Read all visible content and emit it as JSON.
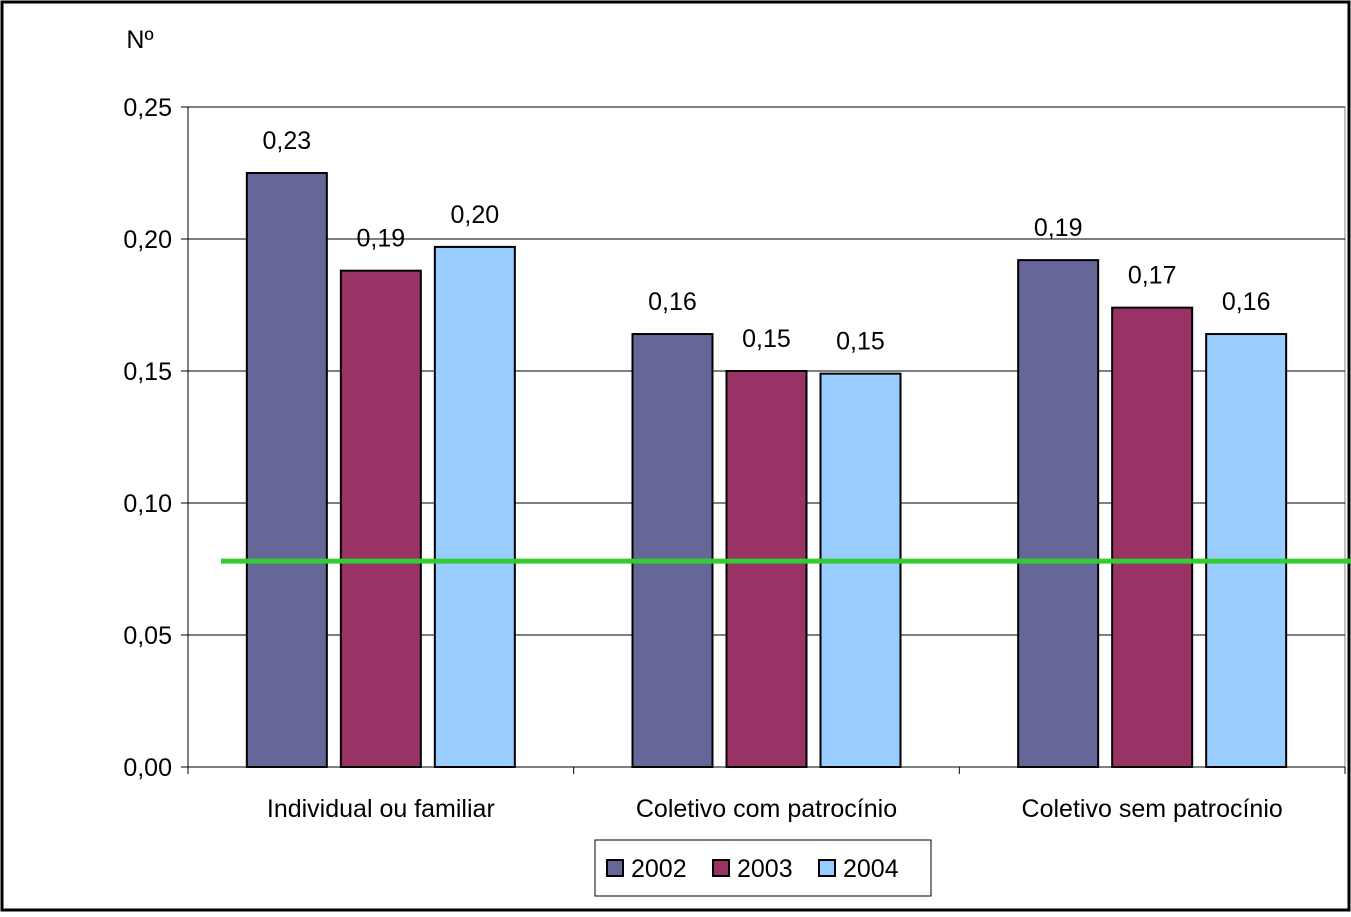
{
  "chart_data": {
    "type": "bar",
    "ylabel": "Nº",
    "categories": [
      "Individual ou familiar",
      "Coletivo com patrocínio",
      "Coletivo sem patrocínio"
    ],
    "series": [
      {
        "name": "2002",
        "color": "#666699",
        "values": [
          0.225,
          0.164,
          0.192
        ],
        "labels": [
          "0,23",
          "0,16",
          "0,19"
        ]
      },
      {
        "name": "2003",
        "color": "#993366",
        "values": [
          0.188,
          0.15,
          0.174
        ],
        "labels": [
          "0,19",
          "0,15",
          "0,17"
        ]
      },
      {
        "name": "2004",
        "color": "#99CCFF",
        "values": [
          0.197,
          0.149,
          0.164
        ],
        "labels": [
          "0,20",
          "0,15",
          "0,16"
        ]
      }
    ],
    "ylim": [
      0,
      0.25
    ],
    "yticks": [
      0,
      0.05,
      0.1,
      0.15,
      0.2,
      0.25
    ],
    "ytick_labels": [
      "0,00",
      "0,05",
      "0,10",
      "0,15",
      "0,20",
      "0,25"
    ],
    "grid": true,
    "plot_background": "#C0C0C0",
    "reference_line": {
      "value": 0.078,
      "color": "#33CC33"
    },
    "legend": {
      "position": "bottom"
    }
  }
}
